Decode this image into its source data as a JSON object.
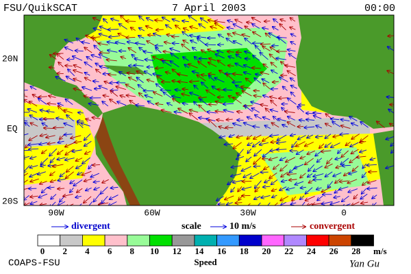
{
  "header": {
    "left": "FSU/QuikSCAT",
    "center": "7 April 2003",
    "right": "00:00"
  },
  "axes": {
    "lat_labels": [
      "20N",
      "EQ",
      "20S"
    ],
    "lon_labels": [
      "90W",
      "60W",
      "30W",
      "0"
    ]
  },
  "legend": {
    "divergent": "divergent",
    "scale": "scale",
    "scale_value": "10 m/s",
    "convergent": "convergent"
  },
  "colorbar": {
    "title": "Speed",
    "unit": "m/s",
    "ticks": [
      0,
      2,
      4,
      6,
      8,
      10,
      12,
      14,
      16,
      18,
      20,
      22,
      24,
      26,
      28
    ],
    "colors": [
      "#ffffff",
      "#c8c8c8",
      "#ffff00",
      "#ffc0cb",
      "#98fb98",
      "#00e000",
      "#989898",
      "#00b0b0",
      "#3399ff",
      "#0000cc",
      "#ff66ff",
      "#b088ff",
      "#ff0000",
      "#cc4400",
      "#000000"
    ]
  },
  "footer": {
    "left": "COAPS-FSU",
    "right": "Yan Gu"
  }
}
